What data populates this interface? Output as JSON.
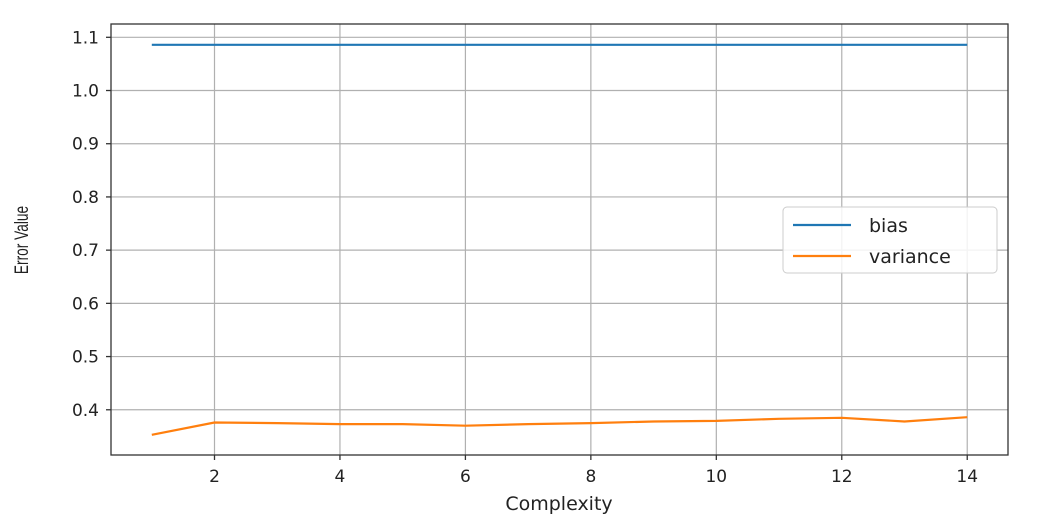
{
  "chart_data": {
    "type": "line",
    "title": "",
    "xlabel": "Complexity",
    "ylabel": "Error Value",
    "xlim": [
      0.35,
      14.65
    ],
    "ylim": [
      0.315,
      1.125
    ],
    "xticks": [
      2,
      4,
      6,
      8,
      10,
      12,
      14
    ],
    "yticks": [
      0.4,
      0.5,
      0.6,
      0.7,
      0.8,
      0.9,
      1.0,
      1.1
    ],
    "ytick_labels": [
      "0.4",
      "0.5",
      "0.6",
      "0.7",
      "0.8",
      "0.9",
      "1.0",
      "1.1"
    ],
    "grid": true,
    "legend_position": "center-right",
    "x": [
      1,
      2,
      3,
      4,
      5,
      6,
      7,
      8,
      9,
      10,
      11,
      12,
      13,
      14
    ],
    "series": [
      {
        "name": "bias",
        "color": "#1f77b4",
        "values": [
          1.086,
          1.086,
          1.086,
          1.086,
          1.086,
          1.086,
          1.086,
          1.086,
          1.086,
          1.086,
          1.086,
          1.086,
          1.086,
          1.086
        ]
      },
      {
        "name": "variance",
        "color": "#ff7f0e",
        "values": [
          0.353,
          0.376,
          0.375,
          0.373,
          0.373,
          0.37,
          0.373,
          0.375,
          0.378,
          0.379,
          0.383,
          0.385,
          0.378,
          0.386
        ]
      }
    ]
  }
}
